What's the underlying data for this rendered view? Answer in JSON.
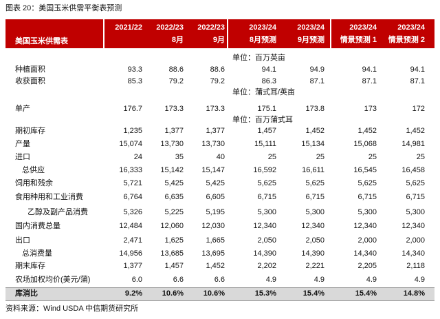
{
  "title": "图表 20：美国玉米供需平衡表预测",
  "table": {
    "corner": "美国玉米供需表",
    "columns": [
      {
        "line1": "2021/22"
      },
      {
        "line1": "2022/23",
        "line2": "8月"
      },
      {
        "line1": "2022/23",
        "line2": "9月"
      },
      {
        "line1": "2023/24",
        "line2": "8月预测"
      },
      {
        "line1": "2023/24",
        "line2": "9月预测"
      },
      {
        "line1": "2023/24",
        "line2": "情景预测 1"
      },
      {
        "line1": "2023/24",
        "line2": "情景预测 2"
      }
    ],
    "rows": [
      {
        "unit": "单位：百万英亩"
      },
      {
        "label": "种植面积",
        "cells": [
          "93.3",
          "88.6",
          "88.6",
          "94.1",
          "94.9",
          "94.1",
          "94.1"
        ]
      },
      {
        "label": "收获面积",
        "cells": [
          "85.3",
          "79.2",
          "79.2",
          "86.3",
          "87.1",
          "87.1",
          "87.1"
        ]
      },
      {
        "unit": "单位：蒲式耳/英亩"
      },
      {
        "label": "单产",
        "cells": [
          "176.7",
          "173.3",
          "173.3",
          "175.1",
          "173.8",
          "173",
          "172"
        ]
      },
      {
        "unit": "单位：百万蒲式耳"
      },
      {
        "label": "期初库存",
        "cells": [
          "1,235",
          "1,377",
          "1,377",
          "1,457",
          "1,452",
          "1,452",
          "1,452"
        ]
      },
      {
        "label": "产量",
        "cells": [
          "15,074",
          "13,730",
          "13,730",
          "15,111",
          "15,134",
          "15,068",
          "14,981"
        ]
      },
      {
        "label": "进口",
        "cells": [
          "24",
          "35",
          "40",
          "25",
          "25",
          "25",
          "25"
        ]
      },
      {
        "label": "总供应",
        "cells": [
          "16,333",
          "15,142",
          "15,147",
          "16,592",
          "16,611",
          "16,545",
          "16,458"
        ]
      },
      {
        "label": "饲用和残余",
        "cells": [
          "5,721",
          "5,425",
          "5,425",
          "5,625",
          "5,625",
          "5,625",
          "5,625"
        ]
      },
      {
        "label": "食用种用和工业消费",
        "cells": [
          "6,764",
          "6,635",
          "6,605",
          "6,715",
          "6,715",
          "6,715",
          "6,715"
        ]
      },
      {
        "label": "乙醇及副产品消费",
        "cells": [
          "5,326",
          "5,225",
          "5,195",
          "5,300",
          "5,300",
          "5,300",
          "5,300"
        ]
      },
      {
        "label": "国内消费总量",
        "cells": [
          "12,484",
          "12,060",
          "12,030",
          "12,340",
          "12,340",
          "12,340",
          "12,340"
        ]
      },
      {
        "label": "出口",
        "cells": [
          "2,471",
          "1,625",
          "1,665",
          "2,050",
          "2,050",
          "2,000",
          "2,000"
        ]
      },
      {
        "label": "总消费量",
        "cells": [
          "14,956",
          "13,685",
          "13,695",
          "14,390",
          "14,390",
          "14,340",
          "14,340"
        ]
      },
      {
        "label": "期末库存",
        "cells": [
          "1,377",
          "1,457",
          "1,452",
          "2,202",
          "2,221",
          "2,205",
          "2,118"
        ]
      },
      {
        "label": "农场加权均价(美元/蒲)",
        "cells": [
          "6.0",
          "6.6",
          "6.6",
          "4.9",
          "4.9",
          "4.9",
          "4.9"
        ]
      },
      {
        "label": "库消比",
        "cells": [
          "9.2%",
          "10.6%",
          "10.6%",
          "15.3%",
          "15.4%",
          "15.4%",
          "14.8%"
        ]
      }
    ]
  },
  "source": "资料来源：Wind USDA 中信期货研究所"
}
